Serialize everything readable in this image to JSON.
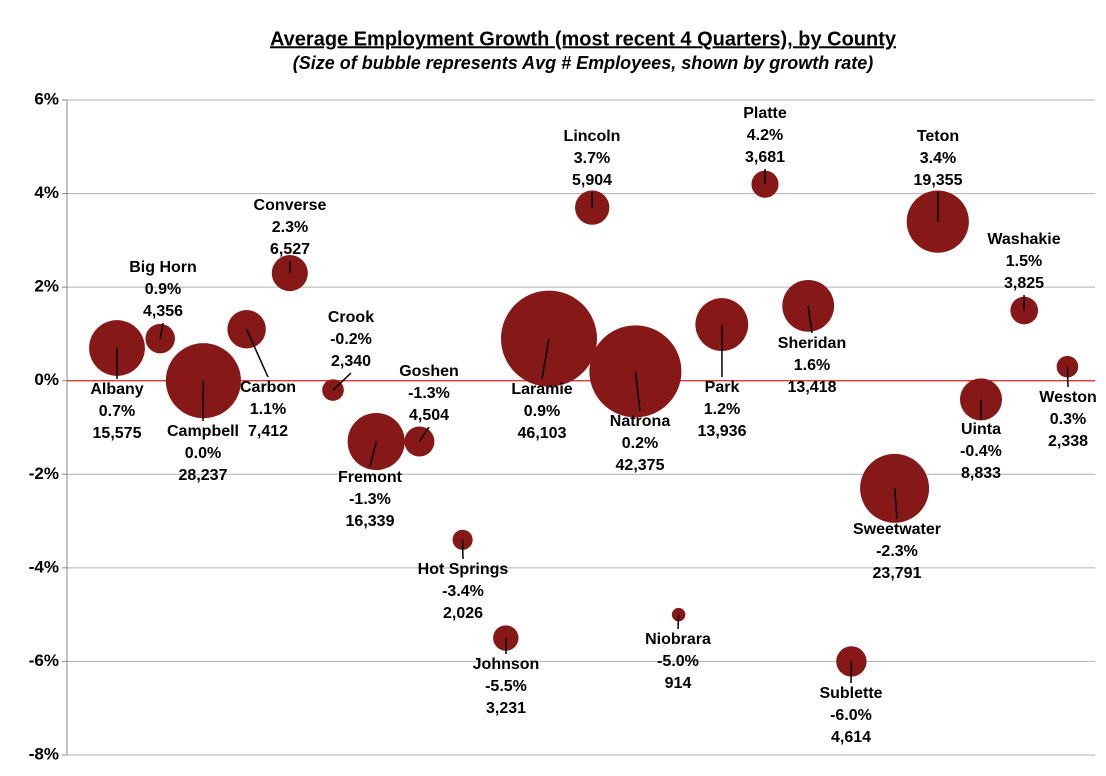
{
  "chart_data": {
    "type": "bubble",
    "title": "Average Employment Growth (most recent 4 Quarters), by County",
    "subtitle": "(Size of bubble represents Avg # Employees, shown by growth rate)",
    "categories": [
      "Albany",
      "Big Horn",
      "Campbell",
      "Carbon",
      "Converse",
      "Crook",
      "Fremont",
      "Goshen",
      "Hot Springs",
      "Johnson",
      "Laramie",
      "Lincoln",
      "Natrona",
      "Niobrara",
      "Park",
      "Platte",
      "Sheridan",
      "Sublette",
      "Sweetwater",
      "Teton",
      "Uinta",
      "Washakie",
      "Weston"
    ],
    "values": [
      0.7,
      0.9,
      0.0,
      1.1,
      2.3,
      -0.2,
      -1.3,
      -1.3,
      -3.4,
      -5.5,
      0.9,
      3.7,
      0.2,
      -5.0,
      1.2,
      4.2,
      1.6,
      -6.0,
      -2.3,
      3.4,
      -0.4,
      1.5,
      0.3
    ],
    "value_labels": [
      "0.7%",
      "0.9%",
      "0.0%",
      "1.1%",
      "2.3%",
      "-0.2%",
      "-1.3%",
      "-1.3%",
      "-3.4%",
      "-5.5%",
      "0.9%",
      "3.7%",
      "0.2%",
      "-5.0%",
      "1.2%",
      "4.2%",
      "1.6%",
      "-6.0%",
      "-2.3%",
      "3.4%",
      "-0.4%",
      "1.5%",
      "0.3%"
    ],
    "sizes": [
      15575,
      4356,
      28237,
      7412,
      6527,
      2340,
      16339,
      4504,
      2026,
      3231,
      46103,
      5904,
      42375,
      914,
      13936,
      3681,
      13418,
      4614,
      23791,
      19355,
      8833,
      3825,
      2338
    ],
    "size_labels": [
      "15,575",
      "4,356",
      "28,237",
      "7,412",
      "6,527",
      "2,340",
      "16,339",
      "4,504",
      "2,026",
      "3,231",
      "46,103",
      "5,904",
      "42,375",
      "914",
      "13,936",
      "3,681",
      "13,418",
      "4,614",
      "23,791",
      "19,355",
      "8,833",
      "3,825",
      "2,338"
    ],
    "color": "#861818",
    "ylim": [
      -8,
      6
    ],
    "yticks": [
      {
        "value": -8,
        "label": "-8%"
      },
      {
        "value": -6,
        "label": "-6%"
      },
      {
        "value": -4,
        "label": "-4%"
      },
      {
        "value": -2,
        "label": "-2%"
      },
      {
        "value": 0,
        "label": "0%"
      },
      {
        "value": 2,
        "label": "2%"
      },
      {
        "value": 4,
        "label": "4%"
      },
      {
        "value": 6,
        "label": "6%"
      }
    ],
    "grid": true
  }
}
